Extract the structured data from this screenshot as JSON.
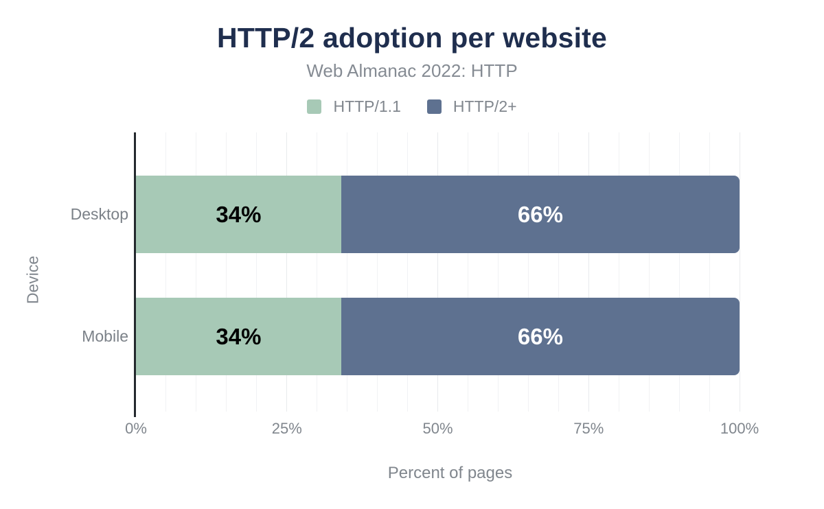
{
  "chart_data": {
    "type": "bar",
    "orientation": "horizontal",
    "stacked": true,
    "title": "HTTP/2 adoption per website",
    "subtitle": "Web Almanac 2022: HTTP",
    "categories": [
      "Desktop",
      "Mobile"
    ],
    "series": [
      {
        "name": "HTTP/1.1",
        "color": "#a7c9b6",
        "label_color": "#000000",
        "values": [
          34,
          34
        ]
      },
      {
        "name": "HTTP/2+",
        "color": "#5e7190",
        "label_color": "#ffffff",
        "values": [
          66,
          66
        ]
      }
    ],
    "xlabel": "Percent of pages",
    "ylabel": "Device",
    "xlim": [
      0,
      100
    ],
    "xticks": [
      "0%",
      "25%",
      "50%",
      "75%",
      "100%"
    ],
    "xtick_values": [
      0,
      25,
      50,
      75,
      100
    ],
    "minor_gridline_step": 5,
    "major_gridline_step": 25,
    "grid": true,
    "legend_position": "top",
    "bar_label_format": "{value}%",
    "colors": {
      "title": "#1f2e4e",
      "subtitle": "#858b93",
      "axis_text": "#80868d",
      "axis_line": "#24292e",
      "minor_gridline": "#f1f2f4",
      "major_gridline": "#e8eaec",
      "background": "#ffffff"
    }
  }
}
